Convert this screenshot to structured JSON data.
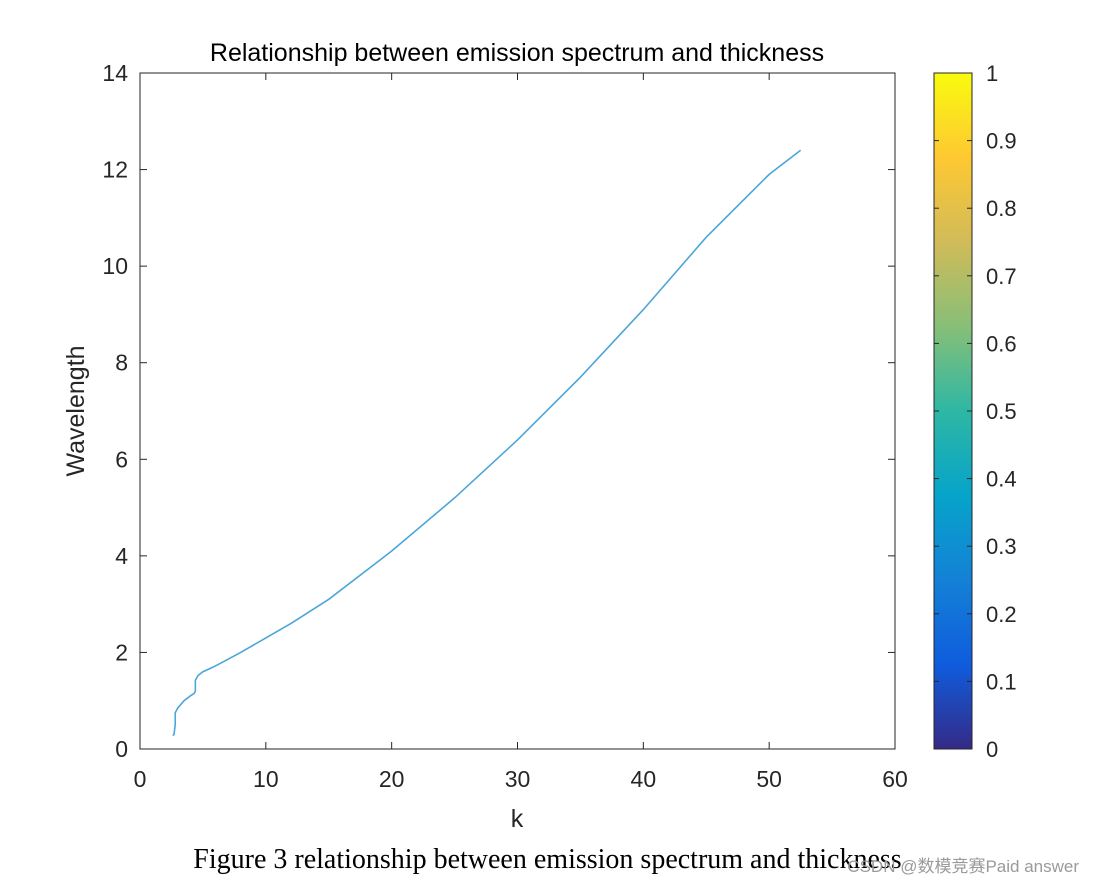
{
  "chart_data": {
    "type": "line",
    "title": "Relationship between emission spectrum and thickness",
    "xlabel": "k",
    "ylabel": "Wavelength",
    "xlim": [
      0,
      60
    ],
    "ylim": [
      0,
      14
    ],
    "xticks": [
      0,
      10,
      20,
      30,
      40,
      50,
      60
    ],
    "yticks": [
      0,
      2,
      4,
      6,
      8,
      10,
      12,
      14
    ],
    "grid": false,
    "series": [
      {
        "color": "#4ba6d9",
        "x": [
          2.6,
          2.7,
          2.8,
          2.8,
          3.0,
          3.5,
          4.0,
          4.3,
          4.4,
          4.4,
          4.6,
          5.0,
          5.5,
          6.0,
          8.0,
          10.0,
          12.0,
          15.0,
          20.0,
          25.0,
          30.0,
          35.0,
          40.0,
          45.0,
          50.0,
          52.5
        ],
        "y": [
          0.28,
          0.3,
          0.5,
          0.75,
          0.85,
          1.0,
          1.1,
          1.15,
          1.2,
          1.42,
          1.52,
          1.6,
          1.66,
          1.72,
          2.0,
          2.3,
          2.6,
          3.1,
          4.1,
          5.2,
          6.4,
          7.7,
          9.1,
          10.6,
          11.9,
          12.4
        ]
      }
    ],
    "colorbar": {
      "min": 0,
      "max": 1,
      "ticks": [
        0,
        0.1,
        0.2,
        0.3,
        0.4,
        0.5,
        0.6,
        0.7,
        0.8,
        0.9,
        1
      ],
      "tick_labels": [
        "0",
        "0.1",
        "0.2",
        "0.3",
        "0.4",
        "0.5",
        "0.6",
        "0.7",
        "0.8",
        "0.9",
        "1"
      ],
      "colormap": "parula",
      "colors": [
        "#352a87",
        "#0f5cdd",
        "#1481d6",
        "#06a4ca",
        "#2eb7a4",
        "#87bf77",
        "#d1bb59",
        "#fec832",
        "#f9fb0e"
      ]
    }
  },
  "caption": "Figure 3 relationship between emission spectrum and thickness",
  "watermark": "CSDN @数模竞赛Paid answer"
}
